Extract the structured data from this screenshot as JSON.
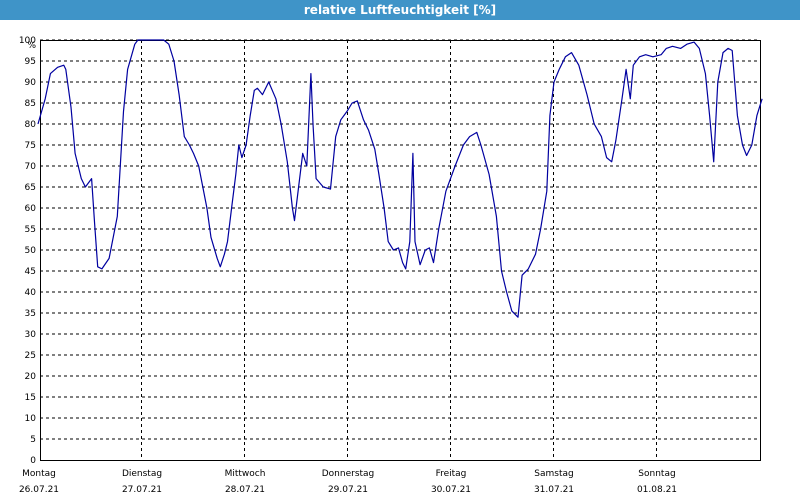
{
  "title": "relative Luftfeuchtigkeit [%]",
  "chart_data": {
    "type": "line",
    "unit_label": "%",
    "ylim": [
      0,
      100
    ],
    "ytick_step": 5,
    "grid": true,
    "x_range": [
      0,
      7
    ],
    "days": [
      {
        "weekday": "Montag",
        "date": "26.07.21"
      },
      {
        "weekday": "Dienstag",
        "date": "27.07.21"
      },
      {
        "weekday": "Mittwoch",
        "date": "28.07.21"
      },
      {
        "weekday": "Donnerstag",
        "date": "29.07.21"
      },
      {
        "weekday": "Freitag",
        "date": "30.07.21"
      },
      {
        "weekday": "Samstag",
        "date": "31.07.21"
      },
      {
        "weekday": "Sonntag",
        "date": "01.08.21"
      }
    ],
    "series": [
      {
        "color": "#0000a0",
        "points": [
          [
            0.0,
            80
          ],
          [
            0.07,
            86
          ],
          [
            0.12,
            92
          ],
          [
            0.19,
            93.5
          ],
          [
            0.25,
            94
          ],
          [
            0.27,
            93
          ],
          [
            0.32,
            84
          ],
          [
            0.36,
            73
          ],
          [
            0.42,
            67
          ],
          [
            0.46,
            65
          ],
          [
            0.52,
            67
          ],
          [
            0.55,
            56
          ],
          [
            0.58,
            46
          ],
          [
            0.62,
            45.5
          ],
          [
            0.69,
            48
          ],
          [
            0.77,
            58
          ],
          [
            0.83,
            83
          ],
          [
            0.87,
            93
          ],
          [
            0.94,
            99
          ],
          [
            0.97,
            100
          ],
          [
            1.1,
            100
          ],
          [
            1.22,
            100
          ],
          [
            1.27,
            99
          ],
          [
            1.32,
            95
          ],
          [
            1.37,
            87
          ],
          [
            1.42,
            77
          ],
          [
            1.47,
            75
          ],
          [
            1.51,
            73
          ],
          [
            1.56,
            70
          ],
          [
            1.6,
            65
          ],
          [
            1.64,
            60
          ],
          [
            1.68,
            53
          ],
          [
            1.74,
            48
          ],
          [
            1.77,
            46
          ],
          [
            1.81,
            49
          ],
          [
            1.84,
            52
          ],
          [
            1.88,
            60
          ],
          [
            1.92,
            68
          ],
          [
            1.95,
            75
          ],
          [
            1.98,
            72
          ],
          [
            2.02,
            75
          ],
          [
            2.06,
            82
          ],
          [
            2.1,
            88
          ],
          [
            2.13,
            88.5
          ],
          [
            2.18,
            87
          ],
          [
            2.24,
            90
          ],
          [
            2.31,
            86
          ],
          [
            2.36,
            80
          ],
          [
            2.42,
            71
          ],
          [
            2.47,
            60
          ],
          [
            2.49,
            57
          ],
          [
            2.53,
            65
          ],
          [
            2.57,
            73
          ],
          [
            2.61,
            70
          ],
          [
            2.65,
            92
          ],
          [
            2.67,
            80
          ],
          [
            2.7,
            67
          ],
          [
            2.77,
            65
          ],
          [
            2.84,
            64.5
          ],
          [
            2.89,
            77
          ],
          [
            2.94,
            81
          ],
          [
            3.0,
            83
          ],
          [
            3.05,
            85
          ],
          [
            3.1,
            85.5
          ],
          [
            3.16,
            81
          ],
          [
            3.21,
            78.5
          ],
          [
            3.27,
            74
          ],
          [
            3.31,
            68
          ],
          [
            3.36,
            60
          ],
          [
            3.4,
            52
          ],
          [
            3.45,
            50
          ],
          [
            3.5,
            50.5
          ],
          [
            3.54,
            47
          ],
          [
            3.57,
            45.5
          ],
          [
            3.61,
            52
          ],
          [
            3.64,
            73
          ],
          [
            3.66,
            52
          ],
          [
            3.71,
            46.5
          ],
          [
            3.76,
            50
          ],
          [
            3.8,
            50.5
          ],
          [
            3.84,
            47
          ],
          [
            3.89,
            55
          ],
          [
            3.96,
            64
          ],
          [
            4.05,
            70
          ],
          [
            4.13,
            75
          ],
          [
            4.19,
            77
          ],
          [
            4.26,
            78
          ],
          [
            4.3,
            75
          ],
          [
            4.38,
            68
          ],
          [
            4.45,
            58
          ],
          [
            4.5,
            45
          ],
          [
            4.55,
            40
          ],
          [
            4.6,
            35.5
          ],
          [
            4.66,
            34
          ],
          [
            4.7,
            44
          ],
          [
            4.76,
            45.5
          ],
          [
            4.83,
            49
          ],
          [
            4.88,
            55
          ],
          [
            4.94,
            64
          ],
          [
            4.97,
            82
          ],
          [
            5.01,
            90
          ],
          [
            5.06,
            93
          ],
          [
            5.12,
            96
          ],
          [
            5.18,
            97
          ],
          [
            5.25,
            94
          ],
          [
            5.33,
            87
          ],
          [
            5.4,
            80
          ],
          [
            5.47,
            77
          ],
          [
            5.52,
            72
          ],
          [
            5.57,
            71
          ],
          [
            5.61,
            76
          ],
          [
            5.67,
            86
          ],
          [
            5.71,
            93
          ],
          [
            5.75,
            86
          ],
          [
            5.78,
            94
          ],
          [
            5.84,
            96
          ],
          [
            5.9,
            96.5
          ],
          [
            5.97,
            96
          ],
          [
            6.05,
            96.5
          ],
          [
            6.1,
            98
          ],
          [
            6.16,
            98.5
          ],
          [
            6.24,
            98
          ],
          [
            6.3,
            99
          ],
          [
            6.37,
            99.5
          ],
          [
            6.42,
            98
          ],
          [
            6.48,
            92
          ],
          [
            6.52,
            82
          ],
          [
            6.56,
            71
          ],
          [
            6.6,
            90
          ],
          [
            6.65,
            97
          ],
          [
            6.7,
            98
          ],
          [
            6.74,
            97.5
          ],
          [
            6.79,
            82
          ],
          [
            6.84,
            75
          ],
          [
            6.88,
            72.5
          ],
          [
            6.93,
            75
          ],
          [
            6.98,
            82
          ],
          [
            7.03,
            86
          ]
        ]
      }
    ]
  }
}
